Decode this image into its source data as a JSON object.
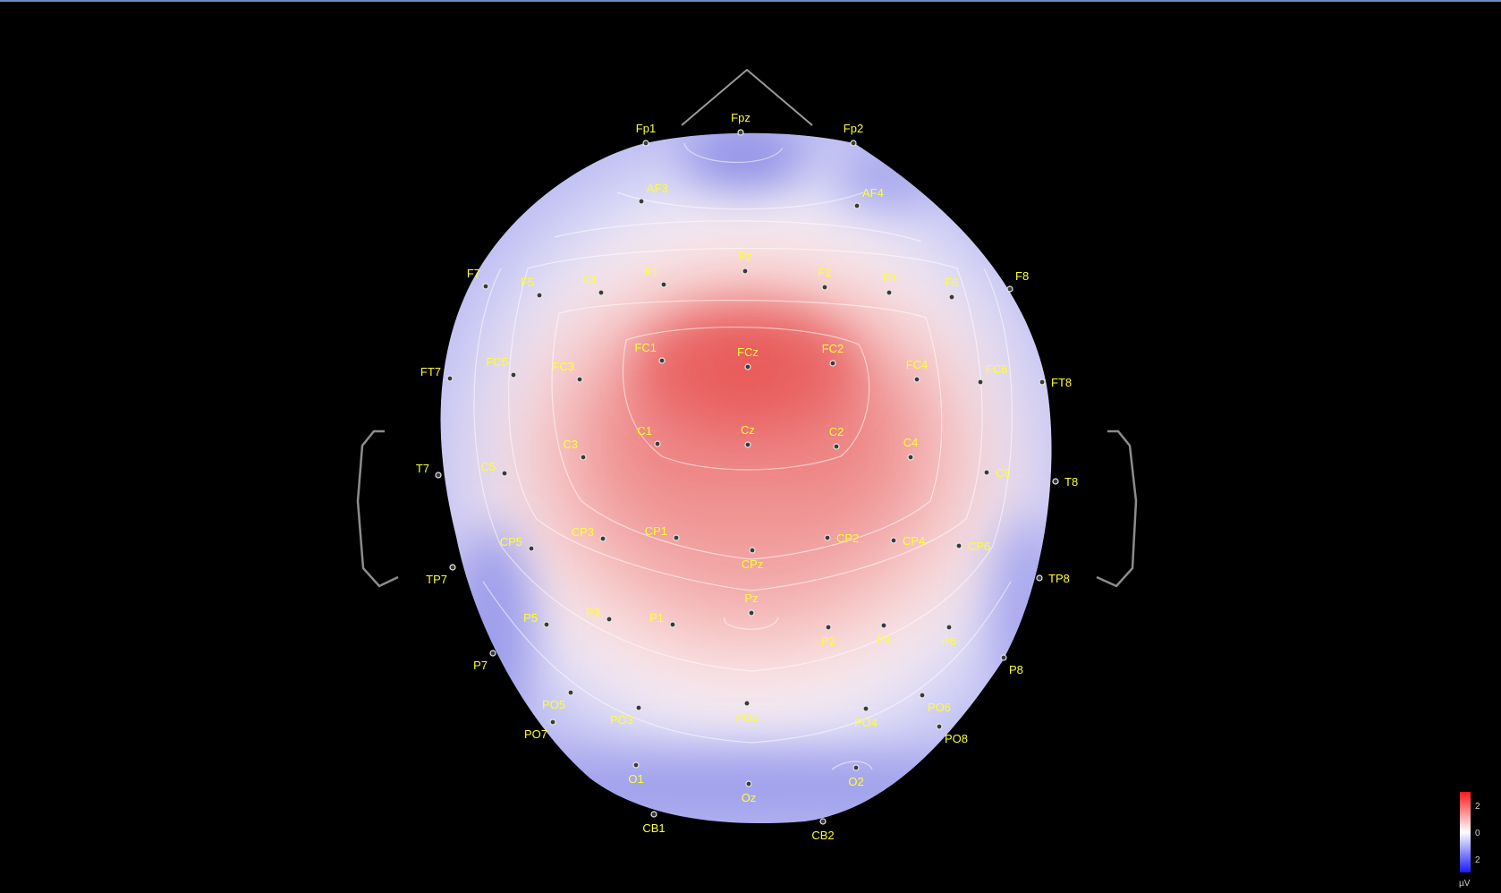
{
  "view": "EEG scalp topography",
  "colorbar": {
    "max_label": "2",
    "mid_label": "0",
    "min_label": "2",
    "unit": "µV",
    "colors": {
      "pos": "#ff1a1a",
      "zero": "#ffffff",
      "neg": "#1a1aff"
    }
  },
  "electrodes": [
    {
      "id": "Fp1",
      "v": -0.3
    },
    {
      "id": "Fpz",
      "v": -1.4
    },
    {
      "id": "Fp2",
      "v": -0.9
    },
    {
      "id": "AF3",
      "v": -0.4
    },
    {
      "id": "AF4",
      "v": -0.2
    },
    {
      "id": "F7",
      "v": -0.3
    },
    {
      "id": "F5",
      "v": 0.1
    },
    {
      "id": "F3",
      "v": 0.7
    },
    {
      "id": "F1",
      "v": 1.0
    },
    {
      "id": "Fz",
      "v": 1.1
    },
    {
      "id": "F2",
      "v": 1.0
    },
    {
      "id": "F4",
      "v": 0.8
    },
    {
      "id": "F6",
      "v": 0.3
    },
    {
      "id": "F8",
      "v": -0.2
    },
    {
      "id": "FT7",
      "v": 0.0
    },
    {
      "id": "FC5",
      "v": 0.4
    },
    {
      "id": "FC3",
      "v": 1.2
    },
    {
      "id": "FC1",
      "v": 1.7
    },
    {
      "id": "FCz",
      "v": 2.0
    },
    {
      "id": "FC2",
      "v": 1.7
    },
    {
      "id": "FC4",
      "v": 1.3
    },
    {
      "id": "FC6",
      "v": 0.6
    },
    {
      "id": "FT8",
      "v": 0.0
    },
    {
      "id": "T7",
      "v": 0.0
    },
    {
      "id": "C5",
      "v": 0.4
    },
    {
      "id": "C3",
      "v": 1.2
    },
    {
      "id": "C1",
      "v": 1.6
    },
    {
      "id": "Cz",
      "v": 1.6
    },
    {
      "id": "C2",
      "v": 1.5
    },
    {
      "id": "C4",
      "v": 1.1
    },
    {
      "id": "C6",
      "v": 0.5
    },
    {
      "id": "T8",
      "v": -0.1
    },
    {
      "id": "TP7",
      "v": -0.8
    },
    {
      "id": "CP5",
      "v": 0.1
    },
    {
      "id": "CP3",
      "v": 0.8
    },
    {
      "id": "CP1",
      "v": 1.2
    },
    {
      "id": "CPz",
      "v": 1.4
    },
    {
      "id": "CP2",
      "v": 1.2
    },
    {
      "id": "CP4",
      "v": 0.7
    },
    {
      "id": "CP6",
      "v": 0.0
    },
    {
      "id": "TP8",
      "v": -0.6
    },
    {
      "id": "P7",
      "v": -1.0
    },
    {
      "id": "P5",
      "v": -0.3
    },
    {
      "id": "P3",
      "v": 0.3
    },
    {
      "id": "P1",
      "v": 0.6
    },
    {
      "id": "Pz",
      "v": 1.0
    },
    {
      "id": "P2",
      "v": 0.4
    },
    {
      "id": "P4",
      "v": 0.2
    },
    {
      "id": "P6",
      "v": -0.1
    },
    {
      "id": "P8",
      "v": -0.7
    },
    {
      "id": "PO7",
      "v": -1.0
    },
    {
      "id": "PO5",
      "v": -0.5
    },
    {
      "id": "PO3",
      "v": -0.3
    },
    {
      "id": "POz",
      "v": 0.1
    },
    {
      "id": "PO4",
      "v": -0.2
    },
    {
      "id": "PO6",
      "v": -0.3
    },
    {
      "id": "PO8",
      "v": -0.8
    },
    {
      "id": "O1",
      "v": -0.7
    },
    {
      "id": "Oz",
      "v": -0.6
    },
    {
      "id": "O2",
      "v": -0.8
    },
    {
      "id": "CB1",
      "v": -1.0
    },
    {
      "id": "CB2",
      "v": -1.0
    }
  ]
}
